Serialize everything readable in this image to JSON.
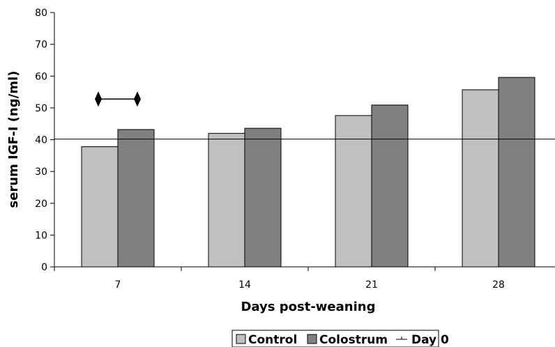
{
  "chart_data": {
    "type": "bar",
    "categories": [
      "7",
      "14",
      "21",
      "28"
    ],
    "series": [
      {
        "name": "Control",
        "values": [
          37.8,
          42.0,
          47.6,
          55.7
        ],
        "color": "#c0c0c0"
      },
      {
        "name": "Colostrum",
        "values": [
          43.2,
          43.6,
          50.9,
          59.6
        ],
        "color": "#808080"
      }
    ],
    "reference_line": {
      "name": "Day 0",
      "value": 40.2,
      "color": "#000000"
    },
    "xlabel": "Days post-weaning",
    "ylabel": "serum IGF-I (ng/ml)",
    "ylim": [
      0,
      80
    ],
    "yticks": [
      "0",
      "10",
      "20",
      "30",
      "40",
      "50",
      "60",
      "70",
      "80"
    ],
    "grid": false,
    "legend_position": "bottom",
    "significance_marker": {
      "category": "7",
      "y": 52.8,
      "symbol": "diamond-bracket"
    }
  }
}
